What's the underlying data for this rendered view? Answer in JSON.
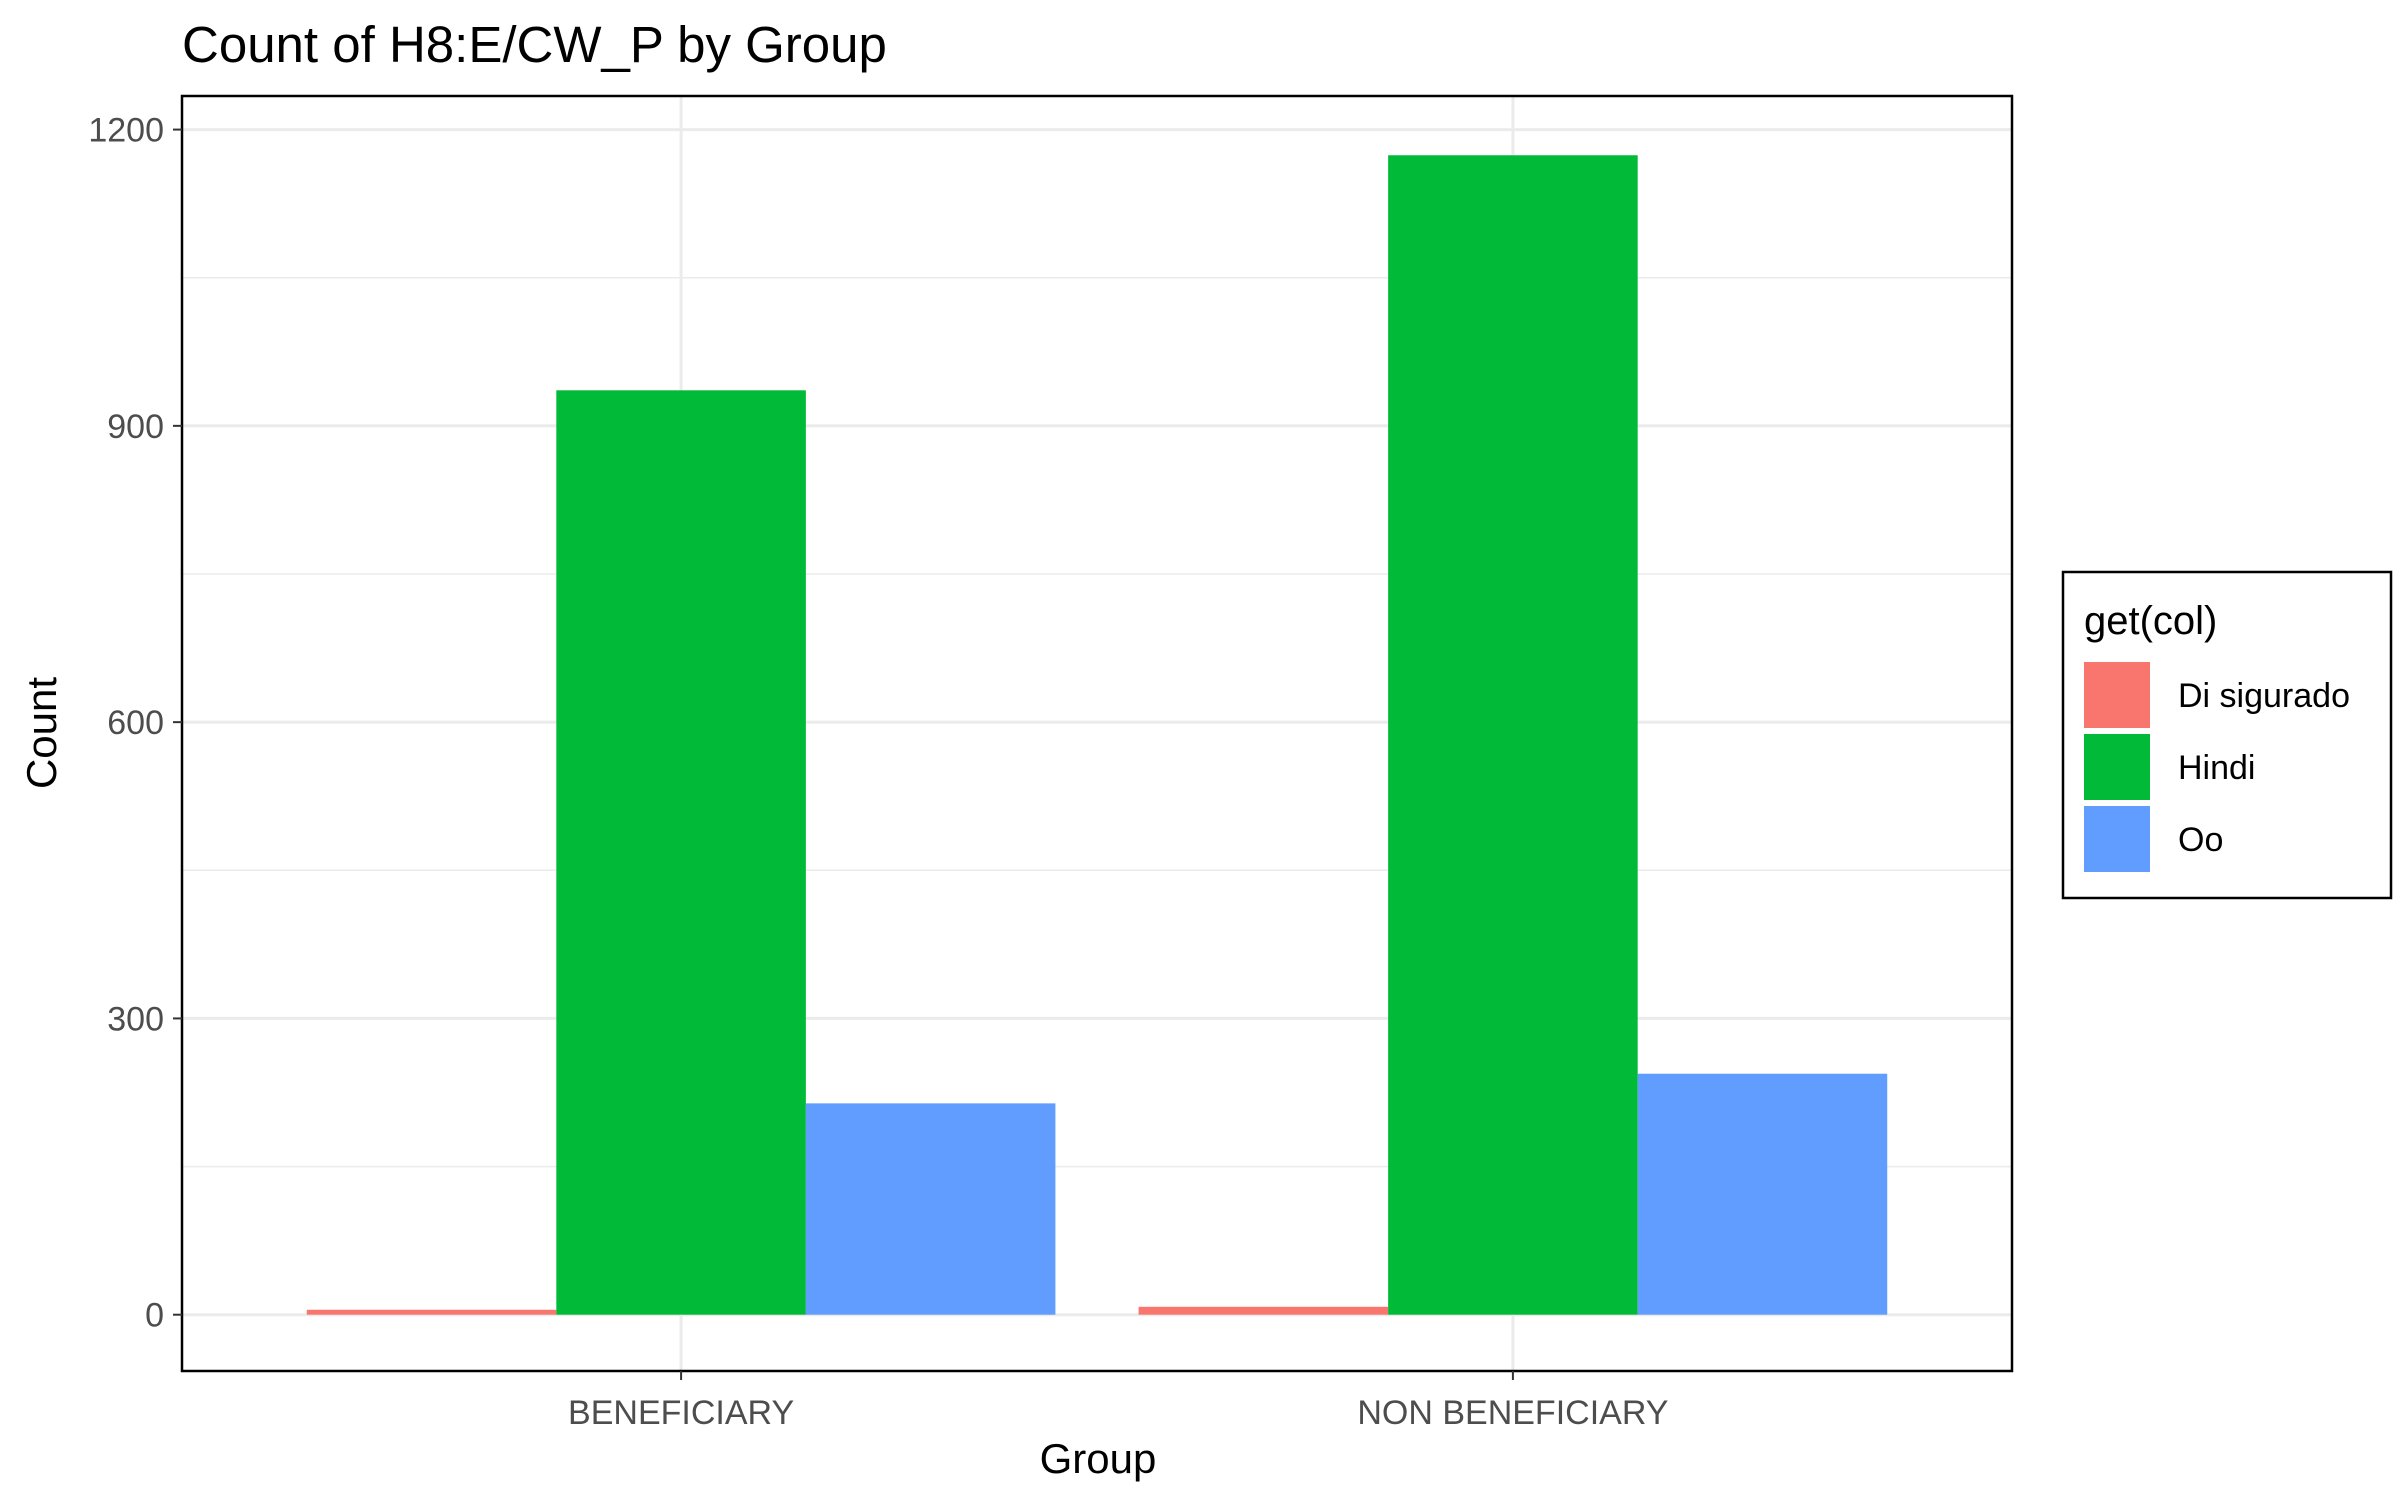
{
  "chart_data": {
    "type": "bar",
    "title": "Count of H8:E/CW_P by Group",
    "xlabel": "Group",
    "ylabel": "Count",
    "categories": [
      "BENEFICIARY",
      "NON BENEFICIARY"
    ],
    "series": [
      {
        "name": "Di sigurado",
        "color": "#F8766D",
        "values": [
          5,
          8
        ]
      },
      {
        "name": "Hindi",
        "color": "#00BA38",
        "values": [
          936,
          1174
        ]
      },
      {
        "name": "Oo",
        "color": "#619CFF",
        "values": [
          214,
          244
        ]
      }
    ],
    "ylim": [
      -57,
      1234
    ],
    "yticks": [
      0,
      300,
      600,
      900,
      1200
    ],
    "grid": true,
    "legend": {
      "title": "get(col)",
      "position": "right"
    }
  }
}
